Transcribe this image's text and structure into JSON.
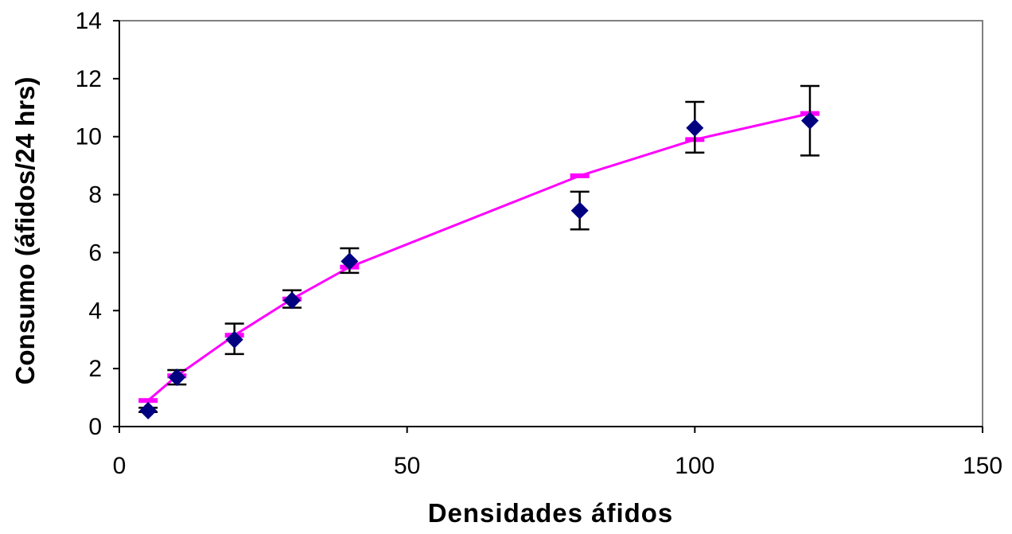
{
  "chart_data": {
    "type": "scatter",
    "xlabel": "Densidades áfidos",
    "ylabel": "Consumo (áfidos/24 hrs)",
    "xlim": [
      0,
      150
    ],
    "ylim": [
      0,
      14
    ],
    "x_ticks": [
      0,
      50,
      100,
      150
    ],
    "y_ticks": [
      0,
      2,
      4,
      6,
      8,
      10,
      12,
      14
    ],
    "x_tick_labels": [
      "0",
      "50",
      "100",
      "150"
    ],
    "y_tick_labels": [
      "0",
      "2",
      "4",
      "6",
      "8",
      "10",
      "12",
      "14"
    ],
    "grid": false,
    "legend": "none",
    "series": [
      {
        "kind": "scatter-errorbars",
        "marker": "diamond",
        "color": "#000080",
        "x": [
          5,
          10,
          20,
          30,
          40,
          80,
          100,
          120
        ],
        "y": [
          0.55,
          1.7,
          3.0,
          4.35,
          5.7,
          7.45,
          10.3,
          10.55
        ],
        "err_low": [
          0.5,
          1.45,
          2.5,
          4.1,
          5.3,
          6.8,
          9.45,
          9.35
        ],
        "err_high": [
          0.65,
          1.95,
          3.55,
          4.7,
          6.15,
          8.1,
          11.2,
          11.75
        ]
      },
      {
        "kind": "fit-line",
        "color": "#FF00FF",
        "x": [
          5,
          10,
          20,
          30,
          40,
          80,
          100,
          120
        ],
        "y": [
          0.9,
          1.75,
          3.15,
          4.4,
          5.5,
          8.65,
          9.9,
          10.8
        ]
      }
    ]
  }
}
